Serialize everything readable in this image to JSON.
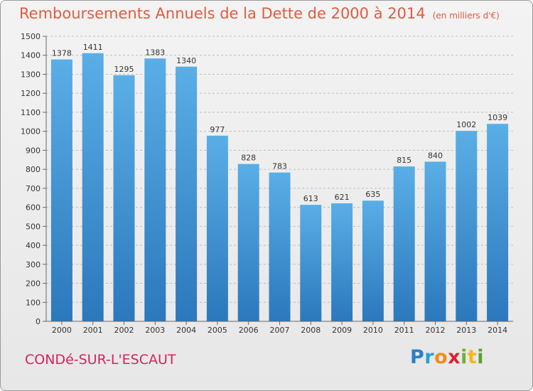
{
  "title": "Remboursements Annuels de la Dette de 2000 à 2014",
  "unit_note": "(en milliers d'€)",
  "place": "CONDé-SUR-L'ESCAUT",
  "logo": {
    "p": "P",
    "r": "r",
    "o": "o",
    "x": "x",
    "i1": "i",
    "t": "t",
    "i2": "i"
  },
  "colors": {
    "bar_light": "#5aaee6",
    "bar_dark": "#2b78bc",
    "title": "#e05b3f",
    "place": "#d3245c"
  },
  "chart_data": {
    "type": "bar",
    "title": "Remboursements Annuels de la Dette de 2000 à 2014",
    "xlabel": "",
    "ylabel": "",
    "categories": [
      "2000",
      "2001",
      "2002",
      "2003",
      "2004",
      "2005",
      "2006",
      "2007",
      "2008",
      "2009",
      "2010",
      "2011",
      "2012",
      "2013",
      "2014"
    ],
    "values": [
      1378,
      1411,
      1295,
      1383,
      1340,
      977,
      828,
      783,
      613,
      621,
      635,
      815,
      840,
      1002,
      1039
    ],
    "ylim": [
      0,
      1500
    ],
    "yticks": [
      0,
      100,
      200,
      300,
      400,
      500,
      600,
      700,
      800,
      900,
      1000,
      1100,
      1200,
      1300,
      1400,
      1500
    ],
    "grid": true
  }
}
